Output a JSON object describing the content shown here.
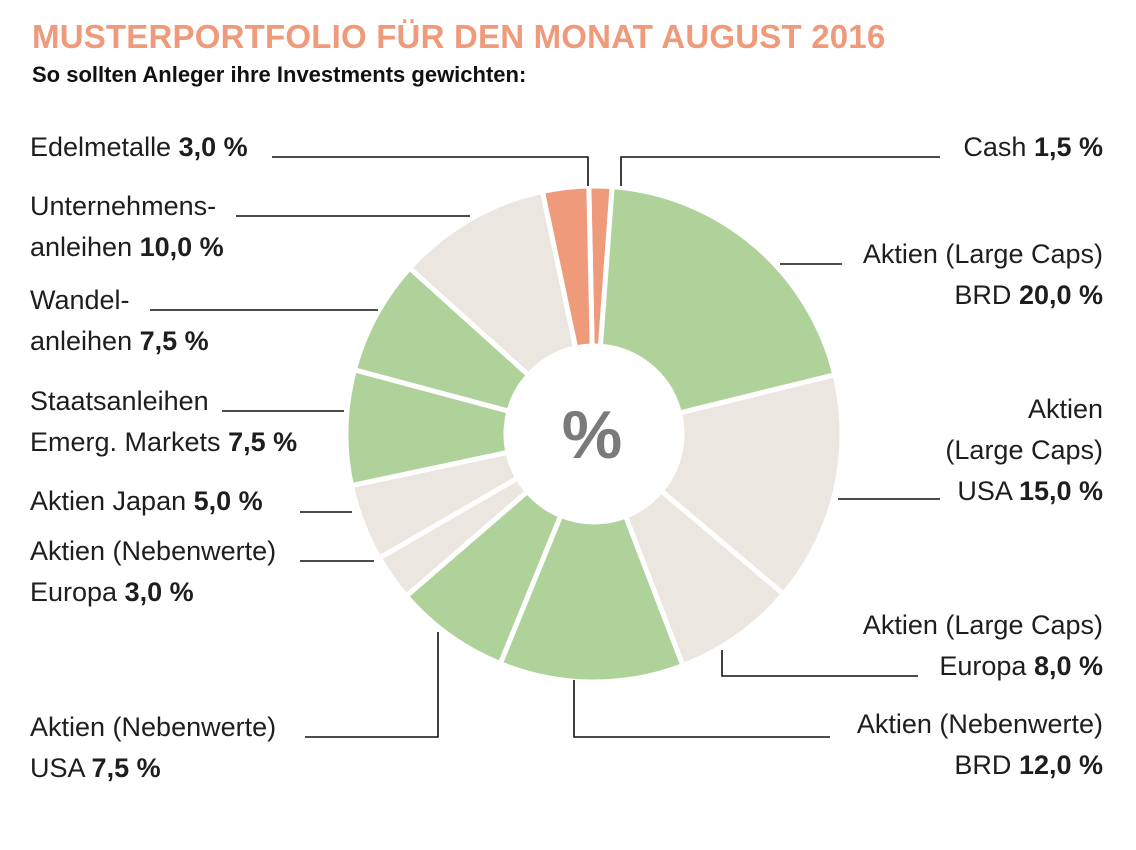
{
  "title": "MUSTERPORTFOLIO FÜR DEN MONAT AUGUST 2016",
  "subtitle": "So sollten Anleger ihre Investments gewichten:",
  "center_symbol": "%",
  "colors": {
    "title": "#ef9a7a",
    "green": "#aed29a",
    "beige": "#ebe7e0",
    "orange": "#ef9a7a",
    "separator": "#ffffff",
    "leader": "#111111"
  },
  "chart_data": {
    "type": "pie",
    "variant": "donut",
    "title": "MUSTERPORTFOLIO FÜR DEN MONAT AUGUST 2016",
    "subtitle": "So sollten Anleger ihre Investments gewichten:",
    "unit": "%",
    "slices": [
      {
        "id": "cash",
        "lines": [
          "Cash"
        ],
        "value_label": "1,5 %",
        "value": 1.5,
        "color": "orange"
      },
      {
        "id": "large-caps-brd",
        "lines": [
          "Aktien (Large Caps)",
          "BRD"
        ],
        "value_label": "20,0 %",
        "value": 20.0,
        "color": "green"
      },
      {
        "id": "large-caps-usa",
        "lines": [
          "Aktien",
          "(Large Caps)",
          "USA"
        ],
        "value_label": "15,0 %",
        "value": 15.0,
        "color": "beige"
      },
      {
        "id": "large-caps-europa",
        "lines": [
          "Aktien (Large Caps)",
          "Europa"
        ],
        "value_label": "8,0 %",
        "value": 8.0,
        "color": "beige"
      },
      {
        "id": "nebenwerte-brd",
        "lines": [
          "Aktien (Nebenwerte)",
          "BRD"
        ],
        "value_label": "12,0 %",
        "value": 12.0,
        "color": "green"
      },
      {
        "id": "nebenwerte-usa",
        "lines": [
          "Aktien (Nebenwerte)",
          "USA"
        ],
        "value_label": "7,5 %",
        "value": 7.5,
        "color": "green"
      },
      {
        "id": "nebenwerte-europa",
        "lines": [
          "Aktien (Nebenwerte)",
          "Europa"
        ],
        "value_label": "3,0 %",
        "value": 3.0,
        "color": "beige"
      },
      {
        "id": "japan",
        "lines": [
          "Aktien Japan"
        ],
        "value_label": "5,0 %",
        "value": 5.0,
        "color": "beige"
      },
      {
        "id": "staatsanleihen-em",
        "lines": [
          "Staatsanleihen",
          "Emerg. Markets"
        ],
        "value_label": "7,5 %",
        "value": 7.5,
        "color": "green"
      },
      {
        "id": "wandelanleihen",
        "lines": [
          "Wandel-",
          "anleihen"
        ],
        "value_label": "7,5 %",
        "value": 7.5,
        "color": "green"
      },
      {
        "id": "unternehmensanleihen",
        "lines": [
          "Unternehmens-",
          "anleihen"
        ],
        "value_label": "10,0 %",
        "value": 10.0,
        "color": "beige"
      },
      {
        "id": "edelmetalle",
        "lines": [
          "Edelmetalle"
        ],
        "value_label": "3,0 %",
        "value": 3.0,
        "color": "orange"
      }
    ]
  }
}
